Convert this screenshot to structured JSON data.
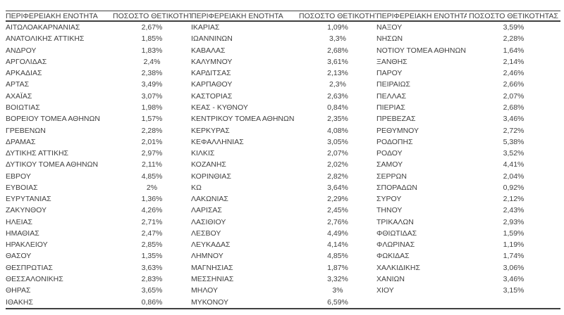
{
  "table": {
    "header": {
      "region": "ΠΕΡΙΦΕΡΕΙΑΚΗ ΕΝΟΤΗΤΑ",
      "positivity": "ΠΟΣΟΣΤΟ ΘΕΤΙΚΟΤΗΤΑΣ"
    },
    "column_groups": [
      {
        "rows": [
          {
            "region": "ΑΙΤΩΛΟΑΚΑΡΝΑΝΙΑΣ",
            "value": "2,67%"
          },
          {
            "region": "ΑΝΑΤΟΛΙΚΗΣ ΑΤΤΙΚΗΣ",
            "value": "1,85%"
          },
          {
            "region": "ΑΝΔΡΟΥ",
            "value": "1,83%"
          },
          {
            "region": "ΑΡΓΟΛΙΔΑΣ",
            "value": "2,4%"
          },
          {
            "region": "ΑΡΚΑΔΙΑΣ",
            "value": "2,38%"
          },
          {
            "region": "ΑΡΤΑΣ",
            "value": "3,49%"
          },
          {
            "region": "ΑΧΑΪΑΣ",
            "value": "3,07%"
          },
          {
            "region": "ΒΟΙΩΤΙΑΣ",
            "value": "1,98%"
          },
          {
            "region": "ΒΟΡΕΙΟΥ ΤΟΜΕΑ ΑΘΗΝΩΝ",
            "value": "1,57%"
          },
          {
            "region": "ΓΡΕΒΕΝΩΝ",
            "value": "2,28%"
          },
          {
            "region": "ΔΡΑΜΑΣ",
            "value": "2,01%"
          },
          {
            "region": "ΔΥΤΙΚΗΣ ΑΤΤΙΚΗΣ",
            "value": "2,97%"
          },
          {
            "region": "ΔΥΤΙΚΟΥ ΤΟΜΕΑ ΑΘΗΝΩΝ",
            "value": "2,11%"
          },
          {
            "region": "ΕΒΡΟΥ",
            "value": "4,85%"
          },
          {
            "region": "ΕΥΒΟΙΑΣ",
            "value": "2%"
          },
          {
            "region": "ΕΥΡΥΤΑΝΙΑΣ",
            "value": "1,36%"
          },
          {
            "region": "ΖΑΚΥΝΘΟΥ",
            "value": "4,26%"
          },
          {
            "region": "ΗΛΕΙΑΣ",
            "value": "2,71%"
          },
          {
            "region": "ΗΜΑΘΙΑΣ",
            "value": "2,47%"
          },
          {
            "region": "ΗΡΑΚΛΕΙΟΥ",
            "value": "2,85%"
          },
          {
            "region": "ΘΑΣΟΥ",
            "value": "1,35%"
          },
          {
            "region": "ΘΕΣΠΡΩΤΙΑΣ",
            "value": "3,63%"
          },
          {
            "region": "ΘΕΣΣΑΛΟΝΙΚΗΣ",
            "value": "2,83%"
          },
          {
            "region": "ΘΗΡΑΣ",
            "value": "3,65%"
          },
          {
            "region": "ΙΘΑΚΗΣ",
            "value": "0,86%"
          }
        ]
      },
      {
        "rows": [
          {
            "region": "ΙΚΑΡΙΑΣ",
            "value": "1,09%"
          },
          {
            "region": "ΙΩΑΝΝΙΝΩΝ",
            "value": "3,3%"
          },
          {
            "region": "ΚΑΒΑΛΑΣ",
            "value": "2,68%"
          },
          {
            "region": "ΚΑΛΥΜΝΟΥ",
            "value": "3,61%"
          },
          {
            "region": "ΚΑΡΔΙΤΣΑΣ",
            "value": "2,13%"
          },
          {
            "region": "ΚΑΡΠΑΘΟΥ",
            "value": "2,3%"
          },
          {
            "region": "ΚΑΣΤΟΡΙΑΣ",
            "value": "2,63%"
          },
          {
            "region": "ΚΕΑΣ - ΚΥΘΝΟΥ",
            "value": "0,84%"
          },
          {
            "region": "ΚΕΝΤΡΙΚΟΥ ΤΟΜΕΑ ΑΘΗΝΩΝ",
            "value": "2,35%"
          },
          {
            "region": "ΚΕΡΚΥΡΑΣ",
            "value": "4,08%"
          },
          {
            "region": "ΚΕΦΑΛΛΗΝΙΑΣ",
            "value": "3,05%"
          },
          {
            "region": "ΚΙΛΚΙΣ",
            "value": "2,07%"
          },
          {
            "region": "ΚΟΖΑΝΗΣ",
            "value": "2,02%"
          },
          {
            "region": "ΚΟΡΙΝΘΙΑΣ",
            "value": "2,82%"
          },
          {
            "region": "ΚΩ",
            "value": "3,64%"
          },
          {
            "region": "ΛΑΚΩΝΙΑΣ",
            "value": "2,29%"
          },
          {
            "region": "ΛΑΡΙΣΑΣ",
            "value": "2,45%"
          },
          {
            "region": "ΛΑΣΙΘΙΟΥ",
            "value": "2,76%"
          },
          {
            "region": "ΛΕΣΒΟΥ",
            "value": "4,49%"
          },
          {
            "region": "ΛΕΥΚΑΔΑΣ",
            "value": "4,14%"
          },
          {
            "region": "ΛΗΜΝΟΥ",
            "value": "4,85%"
          },
          {
            "region": "ΜΑΓΝΗΣΙΑΣ",
            "value": "1,87%"
          },
          {
            "region": "ΜΕΣΣΗΝΙΑΣ",
            "value": "3,32%"
          },
          {
            "region": "ΜΗΛΟΥ",
            "value": "3%"
          },
          {
            "region": "ΜΥΚΟΝΟΥ",
            "value": "6,59%"
          }
        ]
      },
      {
        "rows": [
          {
            "region": "ΝΑΞΟΥ",
            "value": "3,59%"
          },
          {
            "region": "ΝΗΣΩΝ",
            "value": "2,28%"
          },
          {
            "region": "ΝΟΤΙΟΥ ΤΟΜΕΑ ΑΘΗΝΩΝ",
            "value": "1,64%"
          },
          {
            "region": "ΞΑΝΘΗΣ",
            "value": "2,14%"
          },
          {
            "region": "ΠΑΡΟΥ",
            "value": "2,46%"
          },
          {
            "region": "ΠΕΙΡΑΙΩΣ",
            "value": "2,66%"
          },
          {
            "region": "ΠΕΛΛΑΣ",
            "value": "2,07%"
          },
          {
            "region": "ΠΙΕΡΙΑΣ",
            "value": "2,68%"
          },
          {
            "region": "ΠΡΕΒΕΖΑΣ",
            "value": "3,46%"
          },
          {
            "region": "ΡΕΘΥΜΝΟΥ",
            "value": "2,72%"
          },
          {
            "region": "ΡΟΔΟΠΗΣ",
            "value": "5,38%"
          },
          {
            "region": "ΡΟΔΟΥ",
            "value": "3,52%"
          },
          {
            "region": "ΣΑΜΟΥ",
            "value": "4,41%"
          },
          {
            "region": "ΣΕΡΡΩΝ",
            "value": "2,04%"
          },
          {
            "region": "ΣΠΟΡΑΔΩΝ",
            "value": "0,92%"
          },
          {
            "region": "ΣΥΡΟΥ",
            "value": "2,12%"
          },
          {
            "region": "ΤΗΝΟΥ",
            "value": "2,43%"
          },
          {
            "region": "ΤΡΙΚΑΛΩΝ",
            "value": "2,93%"
          },
          {
            "region": "ΦΘΙΩΤΙΔΑΣ",
            "value": "1,59%"
          },
          {
            "region": "ΦΛΩΡΙΝΑΣ",
            "value": "1,19%"
          },
          {
            "region": "ΦΩΚΙΔΑΣ",
            "value": "1,74%"
          },
          {
            "region": "ΧΑΛΚΙΔΙΚΗΣ",
            "value": "3,06%"
          },
          {
            "region": "ΧΑΝΙΩΝ",
            "value": "3,46%"
          },
          {
            "region": "ΧΙΟΥ",
            "value": "3,15%"
          }
        ]
      }
    ]
  }
}
